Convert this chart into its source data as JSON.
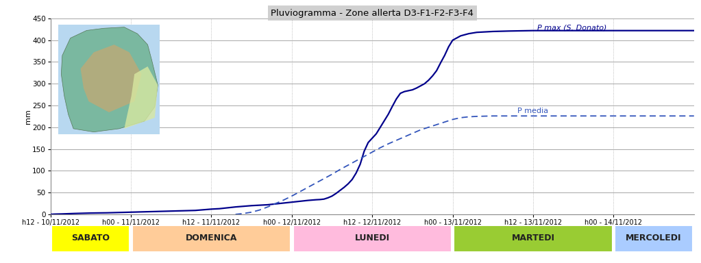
{
  "title": "Pluviogramma - Zone allerta D3-F1-F2-F3-F4",
  "ylabel": "mm",
  "ylim": [
    0,
    450
  ],
  "yticks": [
    0,
    50,
    100,
    150,
    200,
    250,
    300,
    350,
    400,
    450
  ],
  "background_color": "#ffffff",
  "grid_color_h": "#999999",
  "grid_color_v": "#aaaaaa",
  "line_color_solid": "#00008B",
  "line_color_dashed": "#3355bb",
  "x_tick_labels": [
    "h12 - 10/11/2012",
    "h00 - 11/11/2012",
    "h12 - 11/11/2012",
    "h00 - 12/11/2012",
    "h12 - 12/11/2012",
    "h00 - 13/11/2012",
    "h12 - 13/11/2012",
    "h00 - 14/11/2012"
  ],
  "day_labels": [
    "SABATO",
    "DOMENICA",
    "LUNEDI",
    "MARTEDI",
    "MERCOLEDI"
  ],
  "day_colors": [
    "#ffff00",
    "#ffcc99",
    "#ffbbdd",
    "#99cc33",
    "#aaccff"
  ],
  "day_x_starts": [
    0,
    1,
    3,
    5,
    7
  ],
  "day_x_ends": [
    1,
    3,
    5,
    7,
    8
  ],
  "label_pmax": "P max (S. Donato)",
  "label_pmedia": "P media",
  "pmax_x": [
    0.0,
    0.05,
    0.15,
    0.3,
    0.5,
    0.7,
    1.0,
    1.2,
    1.5,
    1.8,
    2.0,
    2.1,
    2.2,
    2.3,
    2.4,
    2.5,
    2.6,
    2.7,
    2.8,
    2.85,
    2.9,
    2.95,
    3.0,
    3.05,
    3.1,
    3.15,
    3.2,
    3.3,
    3.35,
    3.4,
    3.45,
    3.5,
    3.55,
    3.6,
    3.65,
    3.7,
    3.75,
    3.8,
    3.85,
    3.9,
    3.95,
    4.0,
    4.05,
    4.1,
    4.15,
    4.2,
    4.25,
    4.3,
    4.35,
    4.4,
    4.45,
    4.5,
    4.55,
    4.6,
    4.65,
    4.7,
    4.75,
    4.8,
    4.85,
    4.9,
    4.95,
    5.0,
    5.1,
    5.2,
    5.3,
    5.5,
    5.7,
    6.0,
    6.5,
    7.0,
    7.5,
    8.0
  ],
  "pmax_y": [
    0.0,
    0.5,
    1.0,
    2.0,
    3.0,
    3.5,
    5.0,
    6.0,
    7.5,
    9.0,
    12.0,
    13.0,
    15.0,
    17.0,
    18.5,
    20.0,
    21.0,
    22.0,
    24.0,
    25.0,
    26.0,
    27.0,
    28.0,
    29.0,
    30.0,
    31.0,
    32.0,
    33.5,
    34.0,
    35.0,
    38.0,
    42.0,
    48.0,
    55.0,
    62.0,
    70.0,
    80.0,
    95.0,
    115.0,
    145.0,
    165.0,
    175.0,
    185.0,
    200.0,
    215.0,
    230.0,
    248.0,
    265.0,
    278.0,
    282.0,
    284.0,
    286.0,
    290.0,
    295.0,
    300.0,
    308.0,
    318.0,
    330.0,
    348.0,
    365.0,
    385.0,
    400.0,
    410.0,
    415.0,
    418.0,
    420.0,
    421.0,
    422.0,
    422.0,
    422.0,
    422.0,
    422.0
  ],
  "pmedia_x": [
    2.3,
    2.4,
    2.5,
    2.6,
    2.7,
    2.8,
    2.9,
    3.0,
    3.1,
    3.2,
    3.3,
    3.4,
    3.5,
    3.6,
    3.7,
    3.8,
    3.9,
    4.0,
    4.1,
    4.2,
    4.3,
    4.4,
    4.5,
    4.6,
    4.7,
    4.8,
    4.9,
    5.0,
    5.1,
    5.2,
    5.3,
    5.5,
    5.7,
    5.9,
    6.0,
    6.5,
    7.0,
    7.5,
    8.0
  ],
  "pmedia_y": [
    0.0,
    2.0,
    5.0,
    10.0,
    17.0,
    25.0,
    33.0,
    42.0,
    52.0,
    62.0,
    72.0,
    82.0,
    92.0,
    103.0,
    113.0,
    123.0,
    133.0,
    143.0,
    153.0,
    162.0,
    170.0,
    178.0,
    186.0,
    194.0,
    200.0,
    206.0,
    212.0,
    218.0,
    222.0,
    224.0,
    225.0,
    226.0,
    226.0,
    226.0,
    226.0,
    226.0,
    226.0,
    226.0,
    226.0
  ],
  "map_box_color": "#c8e8c0",
  "title_bg_color": "#c8c8c8"
}
